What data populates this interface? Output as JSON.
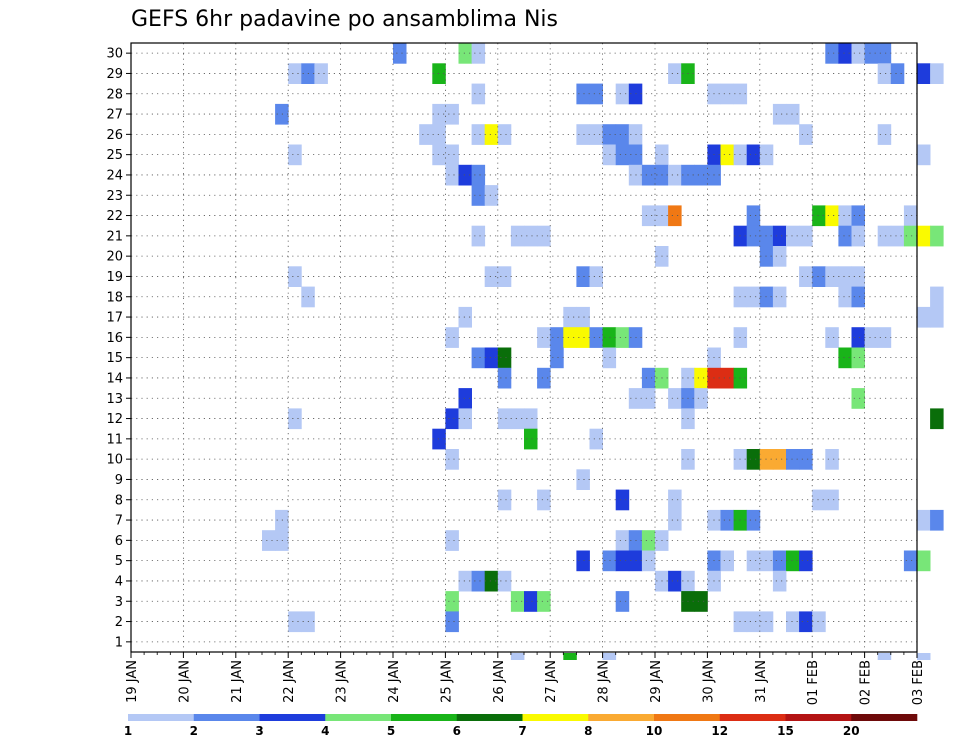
{
  "chart_data": {
    "type": "heatmap",
    "title": "GEFS 6hr padavine po ansamblima Nis",
    "xlabel": "",
    "ylabel": "",
    "x_tick_labels": [
      "19 JAN",
      "20 JAN",
      "21 JAN",
      "22 JAN",
      "23 JAN",
      "24 JAN",
      "25 JAN",
      "26 JAN",
      "27 JAN",
      "28 JAN",
      "29 JAN",
      "30 JAN",
      "31 JAN",
      "01 FEB",
      "02 FEB",
      "03 FEB"
    ],
    "y_tick_labels": [
      "1",
      "2",
      "3",
      "4",
      "5",
      "6",
      "7",
      "8",
      "9",
      "10",
      "11",
      "12",
      "13",
      "14",
      "15",
      "16",
      "17",
      "18",
      "19",
      "20",
      "21",
      "22",
      "23",
      "24",
      "25",
      "26",
      "27",
      "28",
      "29",
      "30"
    ],
    "x_range_steps": [
      0,
      60
    ],
    "members": 30,
    "grid": true,
    "legend": {
      "placement": "bottom",
      "thresholds": [
        "1",
        "2",
        "3",
        "4",
        "5",
        "6",
        "7",
        "8",
        "10",
        "12",
        "15",
        "20"
      ],
      "colors": [
        "#b4c8f5",
        "#5a87eb",
        "#1e3cdc",
        "#78e678",
        "#19b419",
        "#0a6e0a",
        "#fafa00",
        "#faaa32",
        "#f07814",
        "#dc2d14",
        "#b41414",
        "#6e0a0a"
      ]
    },
    "cells": [
      [
        20,
        30,
        2
      ],
      [
        25,
        30,
        4
      ],
      [
        26,
        30,
        1
      ],
      [
        53,
        30,
        2
      ],
      [
        54,
        30,
        3
      ],
      [
        55,
        30,
        1
      ],
      [
        56,
        30,
        2
      ],
      [
        57,
        30,
        2
      ],
      [
        12,
        29,
        1
      ],
      [
        13,
        29,
        2
      ],
      [
        14,
        29,
        1
      ],
      [
        23,
        29,
        5
      ],
      [
        41,
        29,
        1
      ],
      [
        42,
        29,
        5
      ],
      [
        57,
        29,
        1
      ],
      [
        58,
        29,
        2
      ],
      [
        60,
        29,
        3
      ],
      [
        61,
        29,
        1
      ],
      [
        26,
        28,
        1
      ],
      [
        34,
        28,
        2
      ],
      [
        35,
        28,
        2
      ],
      [
        37,
        28,
        1
      ],
      [
        38,
        28,
        3
      ],
      [
        44,
        28,
        1
      ],
      [
        45,
        28,
        1
      ],
      [
        46,
        28,
        1
      ],
      [
        11,
        27,
        2
      ],
      [
        23,
        27,
        1
      ],
      [
        24,
        27,
        1
      ],
      [
        49,
        27,
        1
      ],
      [
        50,
        27,
        1
      ],
      [
        22,
        26,
        1
      ],
      [
        23,
        26,
        1
      ],
      [
        26,
        26,
        1
      ],
      [
        27,
        26,
        7
      ],
      [
        28,
        26,
        1
      ],
      [
        34,
        26,
        1
      ],
      [
        35,
        26,
        1
      ],
      [
        36,
        26,
        2
      ],
      [
        37,
        26,
        2
      ],
      [
        38,
        26,
        1
      ],
      [
        51,
        26,
        1
      ],
      [
        57,
        26,
        1
      ],
      [
        12,
        25,
        1
      ],
      [
        23,
        25,
        1
      ],
      [
        24,
        25,
        1
      ],
      [
        36,
        25,
        1
      ],
      [
        37,
        25,
        2
      ],
      [
        38,
        25,
        2
      ],
      [
        40,
        25,
        1
      ],
      [
        44,
        25,
        3
      ],
      [
        45,
        25,
        7
      ],
      [
        46,
        25,
        1
      ],
      [
        47,
        25,
        3
      ],
      [
        48,
        25,
        1
      ],
      [
        60,
        25,
        1
      ],
      [
        24,
        24,
        1
      ],
      [
        25,
        24,
        3
      ],
      [
        26,
        24,
        2
      ],
      [
        38,
        24,
        1
      ],
      [
        39,
        24,
        2
      ],
      [
        40,
        24,
        2
      ],
      [
        41,
        24,
        1
      ],
      [
        42,
        24,
        2
      ],
      [
        43,
        24,
        2
      ],
      [
        44,
        24,
        2
      ],
      [
        26,
        23,
        2
      ],
      [
        27,
        23,
        1
      ],
      [
        39,
        22,
        1
      ],
      [
        40,
        22,
        1
      ],
      [
        41,
        22,
        9
      ],
      [
        47,
        22,
        2
      ],
      [
        52,
        22,
        5
      ],
      [
        53,
        22,
        7
      ],
      [
        54,
        22,
        1
      ],
      [
        55,
        22,
        2
      ],
      [
        59,
        22,
        1
      ],
      [
        26,
        21,
        1
      ],
      [
        29,
        21,
        1
      ],
      [
        30,
        21,
        1
      ],
      [
        31,
        21,
        1
      ],
      [
        46,
        21,
        3
      ],
      [
        47,
        21,
        2
      ],
      [
        48,
        21,
        2
      ],
      [
        49,
        21,
        3
      ],
      [
        50,
        21,
        1
      ],
      [
        51,
        21,
        1
      ],
      [
        54,
        21,
        2
      ],
      [
        55,
        21,
        1
      ],
      [
        57,
        21,
        1
      ],
      [
        58,
        21,
        1
      ],
      [
        59,
        21,
        4
      ],
      [
        60,
        21,
        7
      ],
      [
        61,
        21,
        4
      ],
      [
        40,
        20,
        1
      ],
      [
        48,
        20,
        2
      ],
      [
        49,
        20,
        1
      ],
      [
        12,
        19,
        1
      ],
      [
        27,
        19,
        1
      ],
      [
        28,
        19,
        1
      ],
      [
        34,
        19,
        2
      ],
      [
        35,
        19,
        1
      ],
      [
        51,
        19,
        1
      ],
      [
        52,
        19,
        2
      ],
      [
        53,
        19,
        1
      ],
      [
        54,
        19,
        1
      ],
      [
        55,
        19,
        1
      ],
      [
        13,
        18,
        1
      ],
      [
        46,
        18,
        1
      ],
      [
        47,
        18,
        1
      ],
      [
        48,
        18,
        2
      ],
      [
        49,
        18,
        1
      ],
      [
        54,
        18,
        1
      ],
      [
        55,
        18,
        2
      ],
      [
        61,
        18,
        1
      ],
      [
        25,
        17,
        1
      ],
      [
        33,
        17,
        1
      ],
      [
        34,
        17,
        1
      ],
      [
        60,
        17,
        1
      ],
      [
        61,
        17,
        1
      ],
      [
        24,
        16,
        1
      ],
      [
        31,
        16,
        1
      ],
      [
        32,
        16,
        2
      ],
      [
        33,
        16,
        7
      ],
      [
        34,
        16,
        7
      ],
      [
        35,
        16,
        2
      ],
      [
        36,
        16,
        5
      ],
      [
        37,
        16,
        4
      ],
      [
        38,
        16,
        2
      ],
      [
        46,
        16,
        1
      ],
      [
        53,
        16,
        1
      ],
      [
        55,
        16,
        3
      ],
      [
        56,
        16,
        1
      ],
      [
        57,
        16,
        1
      ],
      [
        26,
        15,
        2
      ],
      [
        27,
        15,
        3
      ],
      [
        28,
        15,
        6
      ],
      [
        32,
        15,
        2
      ],
      [
        36,
        15,
        1
      ],
      [
        44,
        15,
        1
      ],
      [
        54,
        15,
        5
      ],
      [
        55,
        15,
        4
      ],
      [
        28,
        14,
        2
      ],
      [
        31,
        14,
        2
      ],
      [
        39,
        14,
        2
      ],
      [
        40,
        14,
        4
      ],
      [
        42,
        14,
        1
      ],
      [
        43,
        14,
        7
      ],
      [
        44,
        14,
        10
      ],
      [
        45,
        14,
        10
      ],
      [
        46,
        14,
        5
      ],
      [
        25,
        13,
        3
      ],
      [
        38,
        13,
        1
      ],
      [
        39,
        13,
        1
      ],
      [
        41,
        13,
        1
      ],
      [
        42,
        13,
        2
      ],
      [
        43,
        13,
        1
      ],
      [
        55,
        13,
        4
      ],
      [
        12,
        12,
        1
      ],
      [
        24,
        12,
        3
      ],
      [
        25,
        12,
        1
      ],
      [
        28,
        12,
        1
      ],
      [
        29,
        12,
        1
      ],
      [
        30,
        12,
        1
      ],
      [
        42,
        12,
        1
      ],
      [
        61,
        12,
        6
      ],
      [
        23,
        11,
        3
      ],
      [
        30,
        11,
        5
      ],
      [
        35,
        11,
        1
      ],
      [
        24,
        10,
        1
      ],
      [
        42,
        10,
        1
      ],
      [
        46,
        10,
        1
      ],
      [
        47,
        10,
        6
      ],
      [
        48,
        10,
        8
      ],
      [
        49,
        10,
        8
      ],
      [
        50,
        10,
        2
      ],
      [
        51,
        10,
        2
      ],
      [
        53,
        10,
        1
      ],
      [
        34,
        9,
        1
      ],
      [
        28,
        8,
        1
      ],
      [
        31,
        8,
        1
      ],
      [
        37,
        8,
        3
      ],
      [
        41,
        8,
        1
      ],
      [
        52,
        8,
        1
      ],
      [
        53,
        8,
        1
      ],
      [
        11,
        7,
        1
      ],
      [
        41,
        7,
        1
      ],
      [
        44,
        7,
        1
      ],
      [
        45,
        7,
        2
      ],
      [
        46,
        7,
        5
      ],
      [
        47,
        7,
        2
      ],
      [
        60,
        7,
        1
      ],
      [
        61,
        7,
        2
      ],
      [
        10,
        6,
        1
      ],
      [
        11,
        6,
        1
      ],
      [
        24,
        6,
        1
      ],
      [
        37,
        6,
        1
      ],
      [
        38,
        6,
        2
      ],
      [
        39,
        6,
        4
      ],
      [
        40,
        6,
        1
      ],
      [
        34,
        5,
        3
      ],
      [
        36,
        5,
        2
      ],
      [
        37,
        5,
        3
      ],
      [
        38,
        5,
        3
      ],
      [
        39,
        5,
        1
      ],
      [
        44,
        5,
        2
      ],
      [
        45,
        5,
        1
      ],
      [
        47,
        5,
        1
      ],
      [
        48,
        5,
        1
      ],
      [
        49,
        5,
        2
      ],
      [
        50,
        5,
        5
      ],
      [
        51,
        5,
        3
      ],
      [
        59,
        5,
        2
      ],
      [
        60,
        5,
        4
      ],
      [
        25,
        4,
        1
      ],
      [
        26,
        4,
        2
      ],
      [
        27,
        4,
        6
      ],
      [
        28,
        4,
        1
      ],
      [
        40,
        4,
        1
      ],
      [
        41,
        4,
        3
      ],
      [
        42,
        4,
        1
      ],
      [
        44,
        4,
        1
      ],
      [
        49,
        4,
        1
      ],
      [
        24,
        3,
        4
      ],
      [
        29,
        3,
        4
      ],
      [
        30,
        3,
        3
      ],
      [
        31,
        3,
        4
      ],
      [
        37,
        3,
        2
      ],
      [
        42,
        3,
        6
      ],
      [
        43,
        3,
        6
      ],
      [
        12,
        2,
        1
      ],
      [
        13,
        2,
        1
      ],
      [
        24,
        2,
        2
      ],
      [
        46,
        2,
        1
      ],
      [
        47,
        2,
        1
      ],
      [
        48,
        2,
        1
      ],
      [
        50,
        2,
        1
      ],
      [
        51,
        2,
        3
      ],
      [
        52,
        2,
        1
      ]
    ],
    "bottom_row_cells": [
      [
        29,
        1
      ],
      [
        33,
        5
      ],
      [
        36,
        1
      ],
      [
        57,
        1
      ],
      [
        60,
        1
      ]
    ]
  }
}
